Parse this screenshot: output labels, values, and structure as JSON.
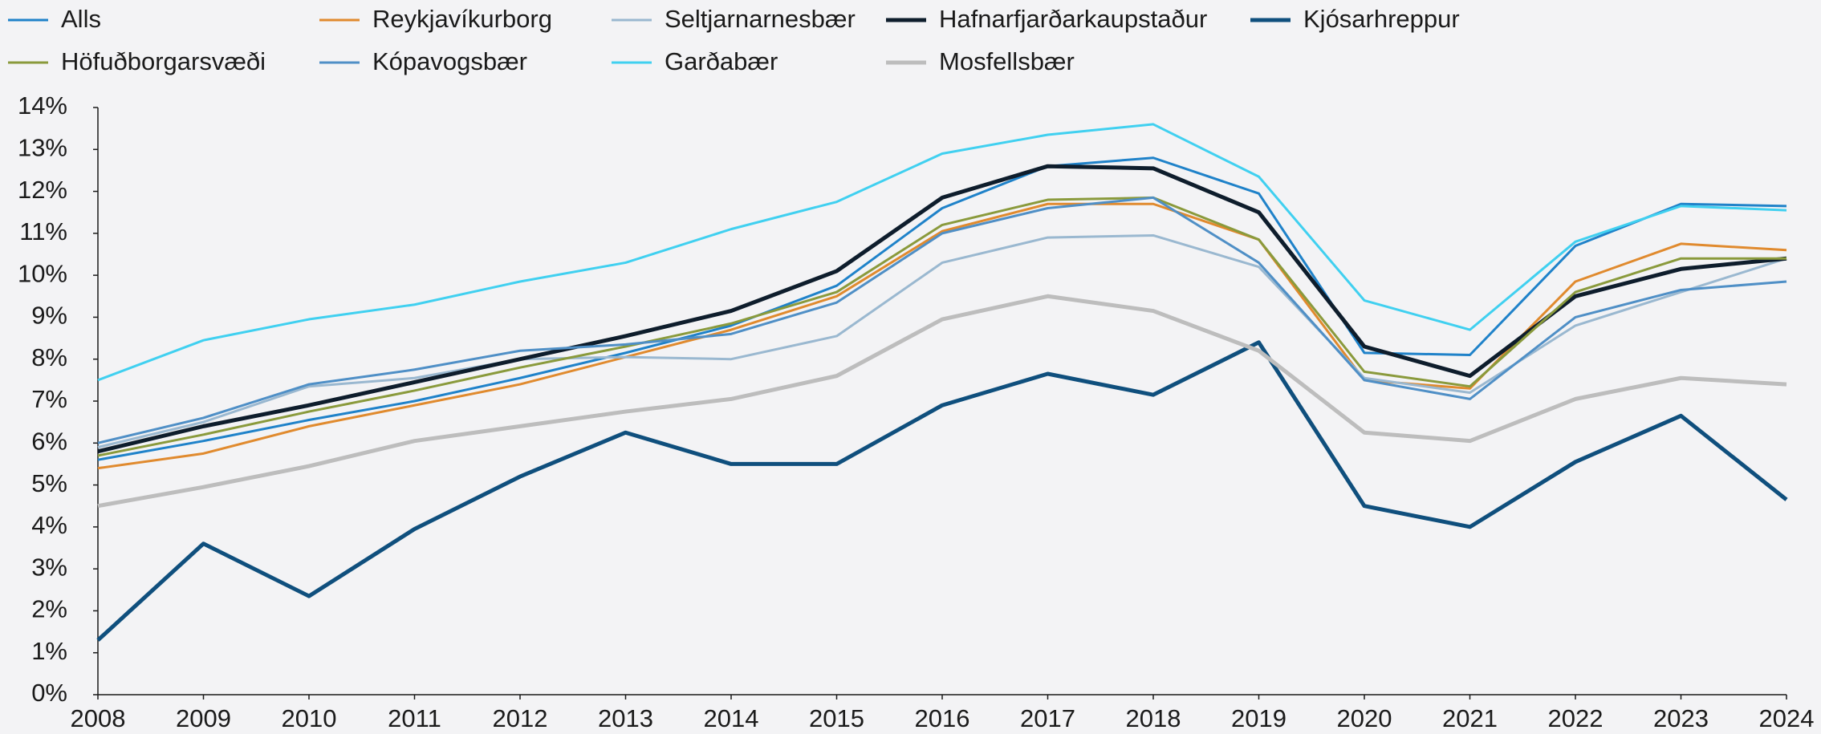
{
  "chart_data": {
    "type": "line",
    "x": [
      2008,
      2009,
      2010,
      2011,
      2012,
      2013,
      2014,
      2015,
      2016,
      2017,
      2018,
      2019,
      2020,
      2021,
      2022,
      2023,
      2024
    ],
    "xlim": [
      2008,
      2024
    ],
    "xticks": [
      2008,
      2009,
      2010,
      2011,
      2012,
      2013,
      2014,
      2015,
      2016,
      2017,
      2018,
      2019,
      2020,
      2021,
      2022,
      2023,
      2024
    ],
    "ylim": [
      0,
      14
    ],
    "yticks": [
      {
        "value": 0,
        "label": "0%"
      },
      {
        "value": 1,
        "label": "1%"
      },
      {
        "value": 2,
        "label": "2%"
      },
      {
        "value": 3,
        "label": "3%"
      },
      {
        "value": 4,
        "label": "4%"
      },
      {
        "value": 5,
        "label": "5%"
      },
      {
        "value": 6,
        "label": "6%"
      },
      {
        "value": 7,
        "label": "7%"
      },
      {
        "value": 8,
        "label": "8%"
      },
      {
        "value": 9,
        "label": "9%"
      },
      {
        "value": 10,
        "label": "10%"
      },
      {
        "value": 11,
        "label": "11%"
      },
      {
        "value": 12,
        "label": "12%"
      },
      {
        "value": 13,
        "label": "13%"
      },
      {
        "value": 14,
        "label": "14%"
      }
    ],
    "grid": false,
    "legend": "top",
    "series": [
      {
        "name": "Alls",
        "color": "#1f82c9",
        "values": [
          5.6,
          6.05,
          6.55,
          7.0,
          7.55,
          8.15,
          8.8,
          9.75,
          11.6,
          12.6,
          12.8,
          11.95,
          8.15,
          8.1,
          10.7,
          11.7,
          11.65
        ]
      },
      {
        "name": "Reykjavíkurborg",
        "color": "#e08a2e",
        "values": [
          5.4,
          5.75,
          6.4,
          6.9,
          7.4,
          8.05,
          8.7,
          9.5,
          11.05,
          11.7,
          11.7,
          10.85,
          7.5,
          7.3,
          9.85,
          10.75,
          10.6
        ]
      },
      {
        "name": "Seltjarnarnesbær",
        "color": "#9ab8d0",
        "values": [
          5.9,
          6.5,
          7.35,
          7.55,
          8.0,
          8.05,
          8.0,
          8.55,
          10.3,
          10.9,
          10.95,
          10.2,
          7.55,
          7.2,
          8.8,
          9.6,
          10.4
        ]
      },
      {
        "name": "Hafnarfjarðarkaupstaður",
        "color": "#0e1d2c",
        "values": [
          5.8,
          6.4,
          6.9,
          7.45,
          8.0,
          8.55,
          9.15,
          10.1,
          11.85,
          12.6,
          12.55,
          11.5,
          8.3,
          7.6,
          9.5,
          10.15,
          10.4
        ]
      },
      {
        "name": "Kjósarhreppur",
        "color": "#0f4f7d",
        "values": [
          1.3,
          3.6,
          2.35,
          3.95,
          5.2,
          6.25,
          5.5,
          5.5,
          6.9,
          7.65,
          7.15,
          8.4,
          4.5,
          4.0,
          5.55,
          6.65,
          4.65
        ]
      },
      {
        "name": "Höfuðborgarsvæði",
        "color": "#8a9a3c",
        "values": [
          5.7,
          6.2,
          6.75,
          7.25,
          7.8,
          8.3,
          8.85,
          9.6,
          11.2,
          11.8,
          11.85,
          10.85,
          7.7,
          7.35,
          9.6,
          10.4,
          10.4
        ]
      },
      {
        "name": "Kópavogsbær",
        "color": "#4f8fc6",
        "values": [
          6.0,
          6.6,
          7.4,
          7.75,
          8.2,
          8.35,
          8.6,
          9.35,
          11.0,
          11.6,
          11.85,
          10.3,
          7.5,
          7.05,
          9.0,
          9.65,
          9.85
        ]
      },
      {
        "name": "Garðabær",
        "color": "#40d0f0",
        "values": [
          7.5,
          8.45,
          8.95,
          9.3,
          9.85,
          10.3,
          11.1,
          11.75,
          12.9,
          13.35,
          13.6,
          12.35,
          9.4,
          8.7,
          10.8,
          11.65,
          11.55
        ]
      },
      {
        "name": "Mosfellsbær",
        "color": "#bdbdbd",
        "values": [
          4.5,
          4.95,
          5.45,
          6.05,
          6.4,
          6.75,
          7.05,
          7.6,
          8.95,
          9.5,
          9.15,
          8.2,
          6.25,
          6.05,
          7.05,
          7.55,
          7.4
        ]
      }
    ]
  }
}
